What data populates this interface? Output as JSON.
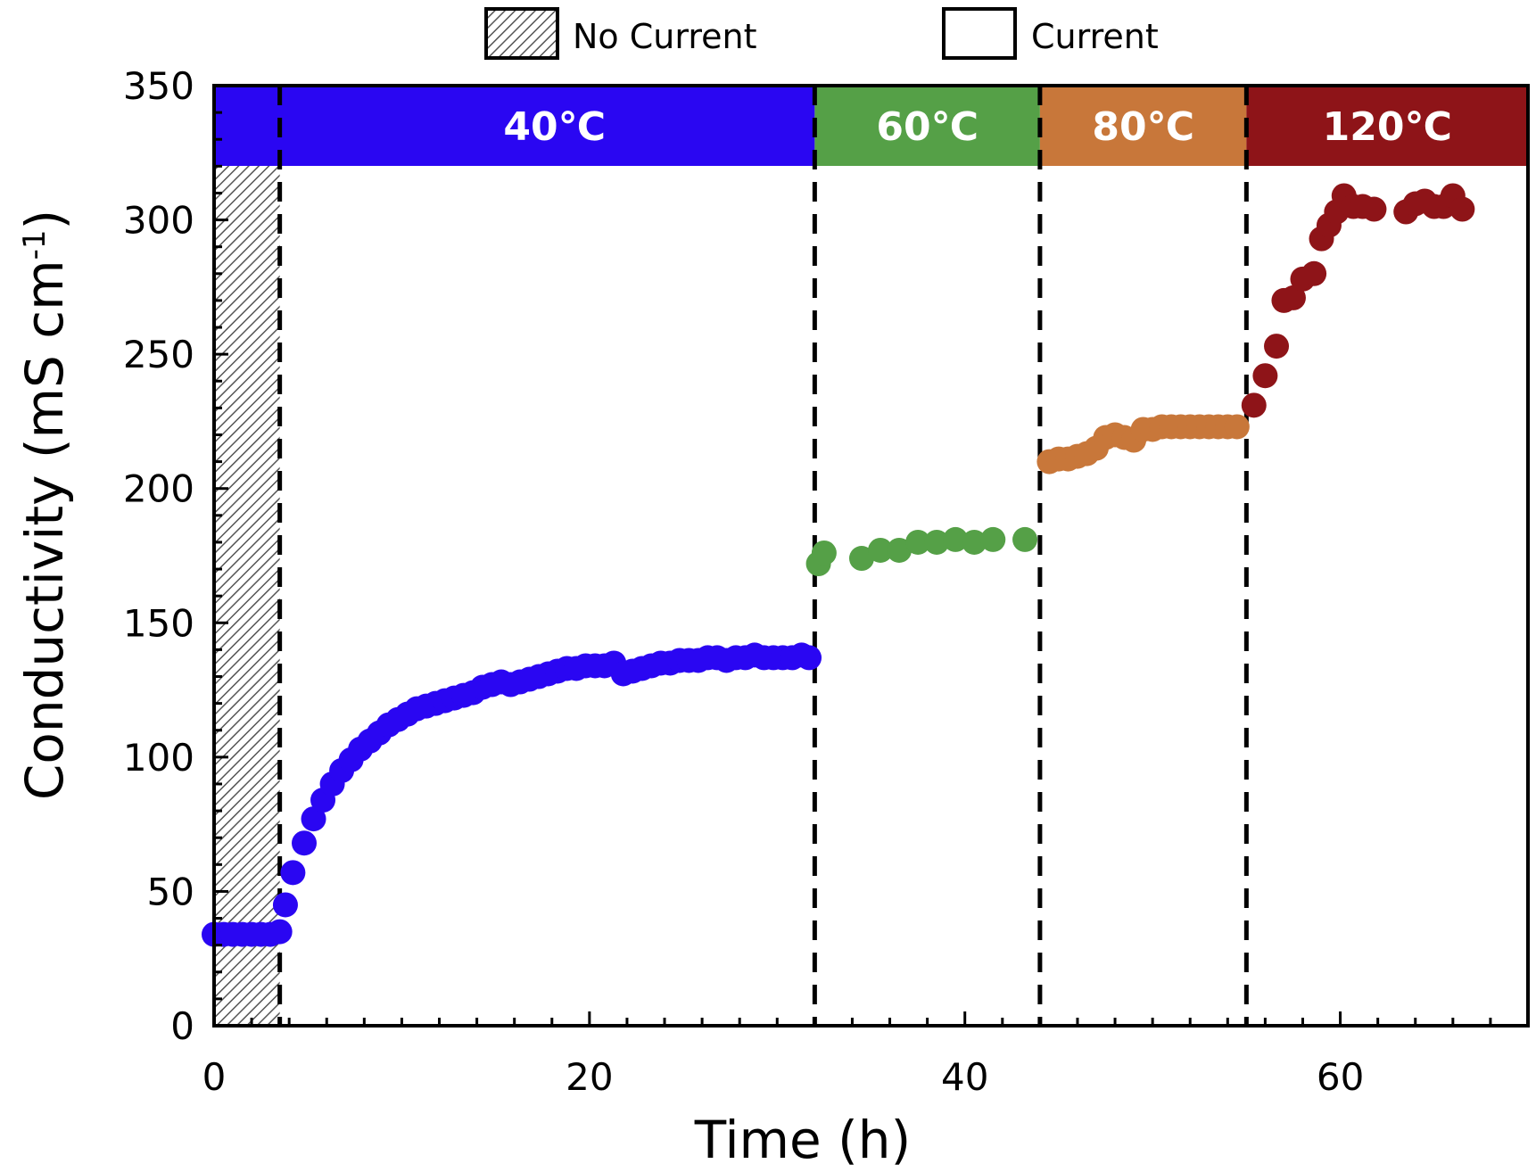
{
  "chart_data": {
    "type": "scatter",
    "title": "",
    "xlabel": "Time (h)",
    "ylabel_main": "Conductivity (mS cm",
    "ylabel_sup": "-1",
    "ylabel_close": ")",
    "xlim": [
      0,
      70
    ],
    "ylim": [
      0,
      350
    ],
    "xticks": [
      0,
      20,
      40,
      60
    ],
    "yticks": [
      0,
      50,
      100,
      150,
      200,
      250,
      300,
      350
    ],
    "legend": [
      {
        "label": "No Current",
        "style": "hatched"
      },
      {
        "label": "Current",
        "style": "empty"
      }
    ],
    "no_current_region": [
      0,
      3.5
    ],
    "dividers": [
      3.5,
      32,
      44,
      55
    ],
    "bands": [
      {
        "label": "40℃",
        "x0": 0,
        "x1": 32,
        "color": "#2a06f2"
      },
      {
        "label": "60℃",
        "x0": 32,
        "x1": 44,
        "color": "#55a047"
      },
      {
        "label": "80℃",
        "x0": 44,
        "x1": 55,
        "color": "#c8773a"
      },
      {
        "label": "120℃",
        "x0": 55,
        "x1": 70,
        "color": "#8e1418"
      }
    ],
    "series": [
      {
        "name": "40℃",
        "color": "#2a06f2",
        "points": [
          [
            0,
            34
          ],
          [
            0.5,
            34
          ],
          [
            1,
            34
          ],
          [
            1.5,
            34
          ],
          [
            2,
            34
          ],
          [
            2.5,
            34
          ],
          [
            3,
            34
          ],
          [
            3.5,
            35
          ],
          [
            3.8,
            45
          ],
          [
            4.2,
            57
          ],
          [
            4.8,
            68
          ],
          [
            5.3,
            77
          ],
          [
            5.8,
            84
          ],
          [
            6.3,
            90
          ],
          [
            6.8,
            95
          ],
          [
            7.3,
            99
          ],
          [
            7.8,
            103
          ],
          [
            8.3,
            106
          ],
          [
            8.8,
            109
          ],
          [
            9.3,
            112
          ],
          [
            9.8,
            114
          ],
          [
            10.3,
            116
          ],
          [
            10.8,
            118
          ],
          [
            11.3,
            119
          ],
          [
            11.8,
            120
          ],
          [
            12.3,
            121
          ],
          [
            12.8,
            122
          ],
          [
            13.3,
            123
          ],
          [
            13.8,
            124
          ],
          [
            14.3,
            126
          ],
          [
            14.8,
            127
          ],
          [
            15.3,
            128
          ],
          [
            15.8,
            127
          ],
          [
            16.3,
            128
          ],
          [
            16.8,
            129
          ],
          [
            17.3,
            130
          ],
          [
            17.8,
            131
          ],
          [
            18.3,
            132
          ],
          [
            18.8,
            133
          ],
          [
            19.3,
            133
          ],
          [
            19.8,
            134
          ],
          [
            20.3,
            134
          ],
          [
            20.8,
            134
          ],
          [
            21.3,
            135
          ],
          [
            21.8,
            131
          ],
          [
            22.3,
            132
          ],
          [
            22.8,
            133
          ],
          [
            23.3,
            134
          ],
          [
            23.8,
            135
          ],
          [
            24.3,
            135
          ],
          [
            24.8,
            136
          ],
          [
            25.3,
            136
          ],
          [
            25.8,
            136
          ],
          [
            26.3,
            137
          ],
          [
            26.8,
            137
          ],
          [
            27.3,
            136
          ],
          [
            27.8,
            137
          ],
          [
            28.3,
            137
          ],
          [
            28.8,
            138
          ],
          [
            29.3,
            137
          ],
          [
            29.8,
            137
          ],
          [
            30.3,
            137
          ],
          [
            30.8,
            137
          ],
          [
            31.3,
            138
          ],
          [
            31.7,
            137
          ]
        ]
      },
      {
        "name": "60℃",
        "color": "#55a047",
        "points": [
          [
            32.2,
            172
          ],
          [
            32.5,
            176
          ],
          [
            34.5,
            174
          ],
          [
            35.5,
            177
          ],
          [
            36.5,
            177
          ],
          [
            37.5,
            180
          ],
          [
            38.5,
            180
          ],
          [
            39.5,
            181
          ],
          [
            40.5,
            180
          ],
          [
            41.5,
            181
          ],
          [
            43.2,
            181
          ]
        ]
      },
      {
        "name": "80℃",
        "color": "#c8773a",
        "points": [
          [
            44.5,
            210
          ],
          [
            45.0,
            211
          ],
          [
            45.5,
            211
          ],
          [
            46.0,
            212
          ],
          [
            46.5,
            213
          ],
          [
            47.0,
            215
          ],
          [
            47.5,
            219
          ],
          [
            48.0,
            220
          ],
          [
            48.5,
            219
          ],
          [
            49.0,
            218
          ],
          [
            49.5,
            222
          ],
          [
            50.0,
            222
          ],
          [
            50.5,
            223
          ],
          [
            51.0,
            223
          ],
          [
            51.5,
            223
          ],
          [
            52.0,
            223
          ],
          [
            52.5,
            223
          ],
          [
            53.0,
            223
          ],
          [
            53.5,
            223
          ],
          [
            54.0,
            223
          ],
          [
            54.5,
            223
          ]
        ]
      },
      {
        "name": "120℃",
        "color": "#8e1418",
        "points": [
          [
            55.4,
            231
          ],
          [
            56.0,
            242
          ],
          [
            56.6,
            253
          ],
          [
            57.0,
            270
          ],
          [
            57.5,
            271
          ],
          [
            58.0,
            278
          ],
          [
            58.6,
            280
          ],
          [
            59.0,
            293
          ],
          [
            59.4,
            298
          ],
          [
            59.8,
            303
          ],
          [
            60.2,
            309
          ],
          [
            60.7,
            305
          ],
          [
            61.2,
            305
          ],
          [
            61.8,
            304
          ],
          [
            63.5,
            303
          ],
          [
            64.0,
            306
          ],
          [
            64.5,
            307
          ],
          [
            65.0,
            305
          ],
          [
            65.5,
            305
          ],
          [
            66.0,
            309
          ],
          [
            66.5,
            304
          ]
        ]
      }
    ]
  }
}
